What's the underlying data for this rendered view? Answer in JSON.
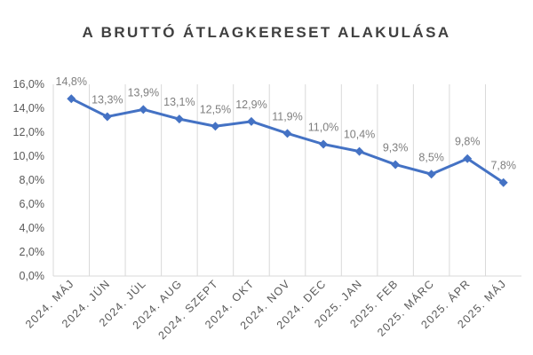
{
  "chart_data": {
    "type": "line",
    "title": "A BRUTTÓ ÁTLAGKERESET ALAKULÁSA",
    "categories": [
      "2024. MÁJ",
      "2024. JÚN",
      "2024. JÚL",
      "2024. AUG",
      "2024. SZEPT",
      "2024. OKT",
      "2024. NOV",
      "2024. DEC",
      "2025. JAN",
      "2025. FEB",
      "2025. MÁRC",
      "2025. ÁPR",
      "2025. MÁJ"
    ],
    "series": [
      {
        "values": [
          14.8,
          13.3,
          13.9,
          13.1,
          12.5,
          12.9,
          11.9,
          11.0,
          10.4,
          9.3,
          8.5,
          9.8,
          7.8
        ],
        "data_labels": [
          "14,8%",
          "13,3%",
          "13,9%",
          "13,1%",
          "12,5%",
          "12,9%",
          "11,9%",
          "11,0%",
          "10,4%",
          "9,3%",
          "8,5%",
          "9,8%",
          "7,8%"
        ],
        "color": "#4472c4",
        "marker": "diamond"
      }
    ],
    "ylim": [
      0,
      16
    ],
    "yticks": [
      "0,0%",
      "2,0%",
      "4,0%",
      "6,0%",
      "8,0%",
      "10,0%",
      "12,0%",
      "14,0%",
      "16,0%"
    ],
    "xlabel": "",
    "ylabel": "",
    "grid": "vertical",
    "legend": "none"
  }
}
